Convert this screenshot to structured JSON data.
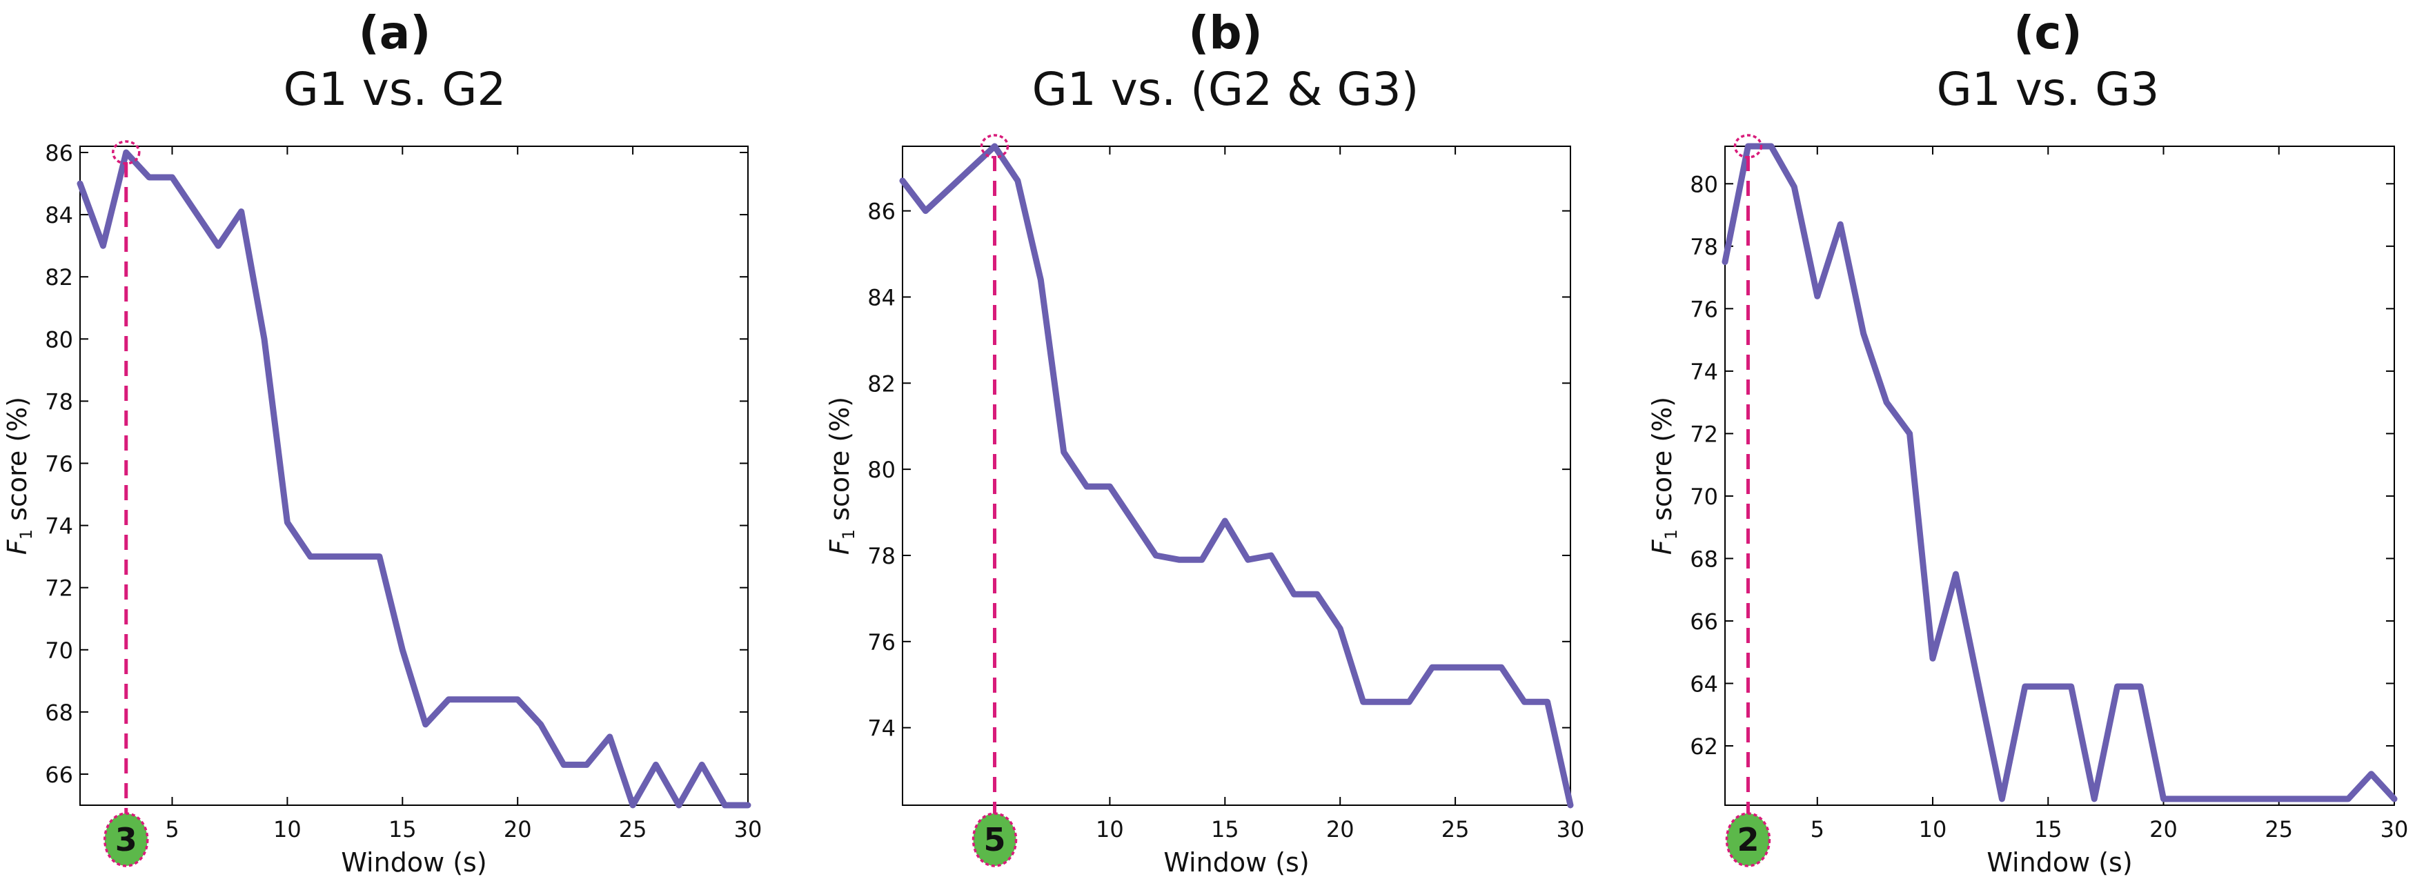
{
  "chart_data": [
    {
      "type": "line",
      "panel_label": "(a)",
      "title": "G1 vs. G2",
      "xlabel": "Window (s)",
      "ylabel": {
        "main": "F",
        "sub": "1",
        "rest": " score (%)"
      },
      "xlim": [
        1,
        30
      ],
      "ylim": [
        65,
        86.2
      ],
      "xticks": [
        5,
        10,
        15,
        20,
        25,
        30
      ],
      "yticks": [
        66,
        68,
        70,
        72,
        74,
        76,
        78,
        80,
        82,
        84,
        86
      ],
      "optimal_window": 3,
      "optimal_label": "3",
      "line_color": "#6a5fb0",
      "marker_color": "#d81b7a",
      "badge_color": "#5cb84a",
      "series": [
        {
          "x": [
            1,
            2,
            3,
            4,
            5,
            6,
            7,
            8,
            9,
            10,
            11,
            12,
            13,
            14,
            15,
            16,
            17,
            18,
            19,
            20,
            21,
            22,
            23,
            24,
            25,
            26,
            27,
            28,
            29,
            30
          ],
          "y": [
            85.0,
            83.0,
            86.0,
            85.2,
            85.2,
            84.1,
            83.0,
            84.1,
            80.0,
            74.1,
            73.0,
            73.0,
            73.0,
            73.0,
            70.0,
            67.6,
            68.4,
            68.4,
            68.4,
            68.4,
            67.6,
            66.3,
            66.3,
            67.2,
            65.0,
            66.3,
            65.0,
            66.3,
            65.0,
            65.0
          ]
        }
      ]
    },
    {
      "type": "line",
      "panel_label": "(b)",
      "title": "G1 vs. (G2 & G3)",
      "xlabel": "Window (s)",
      "ylabel": {
        "main": "F",
        "sub": "1",
        "rest": " score (%)"
      },
      "xlim": [
        1,
        30
      ],
      "ylim": [
        72.2,
        87.5
      ],
      "xticks": [
        10,
        15,
        20,
        25,
        30
      ],
      "yticks": [
        74,
        76,
        78,
        80,
        82,
        84,
        86
      ],
      "optimal_window": 5,
      "optimal_label": "5",
      "line_color": "#6a5fb0",
      "marker_color": "#d81b7a",
      "badge_color": "#5cb84a",
      "series": [
        {
          "x": [
            1,
            2,
            3,
            4,
            5,
            6,
            7,
            8,
            9,
            10,
            11,
            12,
            13,
            14,
            15,
            16,
            17,
            18,
            19,
            20,
            21,
            22,
            23,
            24,
            25,
            26,
            27,
            28,
            29,
            30
          ],
          "y": [
            86.7,
            86.0,
            86.5,
            87.0,
            87.5,
            86.7,
            84.4,
            80.4,
            79.6,
            79.6,
            78.8,
            78.0,
            77.9,
            77.9,
            78.8,
            77.9,
            78.0,
            77.1,
            77.1,
            76.3,
            74.6,
            74.6,
            74.6,
            75.4,
            75.4,
            75.4,
            75.4,
            74.6,
            74.6,
            72.2
          ]
        }
      ]
    },
    {
      "type": "line",
      "panel_label": "(c)",
      "title": "G1 vs. G3",
      "xlabel": "Window (s)",
      "ylabel": {
        "main": "F",
        "sub": "1",
        "rest": " score (%)"
      },
      "xlim": [
        1,
        30
      ],
      "ylim": [
        60.1,
        81.2
      ],
      "xticks": [
        5,
        10,
        15,
        20,
        25,
        30
      ],
      "yticks": [
        62,
        64,
        66,
        68,
        70,
        72,
        74,
        76,
        78,
        80
      ],
      "optimal_window": 2,
      "optimal_label": "2",
      "line_color": "#6a5fb0",
      "marker_color": "#d81b7a",
      "badge_color": "#5cb84a",
      "series": [
        {
          "x": [
            1,
            2,
            3,
            4,
            5,
            6,
            7,
            8,
            9,
            10,
            11,
            12,
            13,
            14,
            15,
            16,
            17,
            18,
            19,
            20,
            21,
            22,
            23,
            24,
            25,
            26,
            27,
            28,
            29,
            30
          ],
          "y": [
            77.5,
            81.2,
            81.2,
            79.9,
            76.4,
            78.7,
            75.2,
            73.0,
            72.0,
            64.8,
            67.5,
            63.9,
            60.3,
            63.9,
            63.9,
            63.9,
            60.3,
            63.9,
            63.9,
            60.3,
            60.3,
            60.3,
            60.3,
            60.3,
            60.3,
            60.3,
            60.3,
            60.3,
            61.1,
            60.3
          ]
        }
      ]
    }
  ]
}
